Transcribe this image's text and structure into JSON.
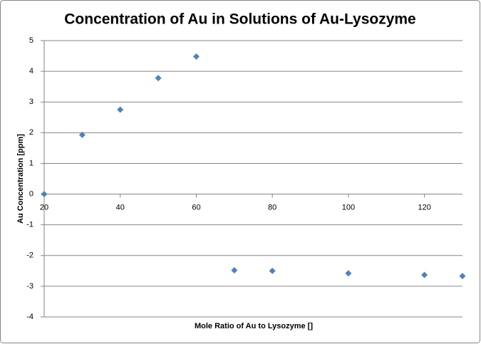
{
  "chart_data": {
    "type": "scatter",
    "title": "Concentration of Au in Solutions of Au-Lysozyme",
    "x_label": "Mole Ratio of Au to Lysozyme []",
    "y_label": "Au Concentration [ppm]",
    "x": [
      20,
      30,
      40,
      50,
      60,
      70,
      80,
      100,
      120,
      130
    ],
    "y": [
      0,
      1.93,
      2.75,
      3.78,
      4.48,
      -2.48,
      -2.5,
      -2.58,
      -2.63,
      -2.67
    ],
    "color": "#4f81bd",
    "xlim": [
      20,
      130
    ],
    "xticks": [
      20,
      40,
      60,
      80,
      100,
      120
    ],
    "ylim": [
      -4,
      5
    ],
    "yticks": [
      -4,
      -3,
      -2,
      -1,
      0,
      1,
      2,
      3,
      4,
      5
    ],
    "grid": true
  }
}
